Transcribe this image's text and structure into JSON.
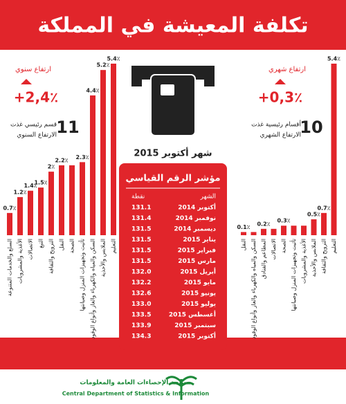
{
  "title": "تكلفة المعيشة في المملكة",
  "period": "شهر أكتوبر 2015",
  "annual": {
    "label": "ارتفاع سنوي",
    "change": "+2,4٪",
    "count": "11",
    "line1": "قسم رئيسي غذت",
    "line2": "الارتفاع السنوي"
  },
  "monthly": {
    "label": "ارتفاع شهري",
    "change": "+0,3٪",
    "count": "10",
    "line1": "أقسام رئيسية غذت",
    "line2": "الارتفاع الشهري"
  },
  "chart_data": [
    {
      "type": "bar",
      "color": "#e1252b",
      "categories": [
        "السلع والخدمات المتنوعة",
        "الأغذية والمشروبات",
        "الاتصالات",
        "التبغ",
        "الترويح والثقافة",
        "النقل",
        "الصحة",
        "تأثيث وتجهيزات المنزل وصيانتها",
        "السكن والمياه والكهرباء والغاز وأنواع الوقود",
        "الملابس والأحذية",
        "التعليم"
      ],
      "values": [
        0.7,
        1.2,
        1.4,
        1.5,
        2,
        2.2,
        2.2,
        2.3,
        4.4,
        5.2,
        5.4
      ],
      "value_labels": [
        "0.7٪",
        "1.2٪",
        "1.4٪",
        "1.5٪",
        "2٪",
        "2.2٪",
        null,
        "2.3٪",
        "4.4٪",
        "5.2٪",
        "5.4٪"
      ]
    },
    {
      "type": "bar",
      "color": "#e1252b",
      "categories": [
        "النقل",
        "السكن والمياه والكهرباء والغاز وأنواع الوقود",
        "المطاعم والفنادق",
        "الاتصالات",
        "الصحة",
        "تأثيث وتجهيزات المنزل وصيانتها",
        "الأغذية والمشروبات",
        "الملابس والأحذية",
        "الترويح والثقافة",
        "التعليم"
      ],
      "values": [
        0.1,
        0.1,
        0.2,
        0.2,
        0.3,
        0.3,
        0.3,
        0.5,
        0.7,
        5.4
      ],
      "value_labels": [
        "0.1٪",
        null,
        "0.2٪",
        null,
        "0.3٪",
        null,
        null,
        "0.5٪",
        "0.7٪",
        "5.4٪"
      ]
    }
  ],
  "table": {
    "title": "مؤشر الرقم القياسي",
    "columns": [
      "الشهر",
      "نقطة"
    ],
    "rows": [
      [
        "أكتوبر 2014",
        "131.1"
      ],
      [
        "نوفمبر 2014",
        "131.4"
      ],
      [
        "ديسمبر 2014",
        "131.5"
      ],
      [
        "يناير 2015",
        "131.5"
      ],
      [
        "فبراير 2015",
        "131.5"
      ],
      [
        "مارس 2015",
        "131.5"
      ],
      [
        "أبريل 2015",
        "132.0"
      ],
      [
        "مايو 2015",
        "132.2"
      ],
      [
        "يونيو 2015",
        "132.6"
      ],
      [
        "يوليو 2015",
        "133.0"
      ],
      [
        "أغسطس 2015",
        "133.5"
      ],
      [
        "سبتمبر 2015",
        "133.9"
      ],
      [
        "أكتوبر 2015",
        "134.3"
      ]
    ]
  },
  "footer": {
    "arabic": "مصلحة الإحصاءات العامة والمعلومات",
    "english": "Central Department of Statistics & Information"
  }
}
